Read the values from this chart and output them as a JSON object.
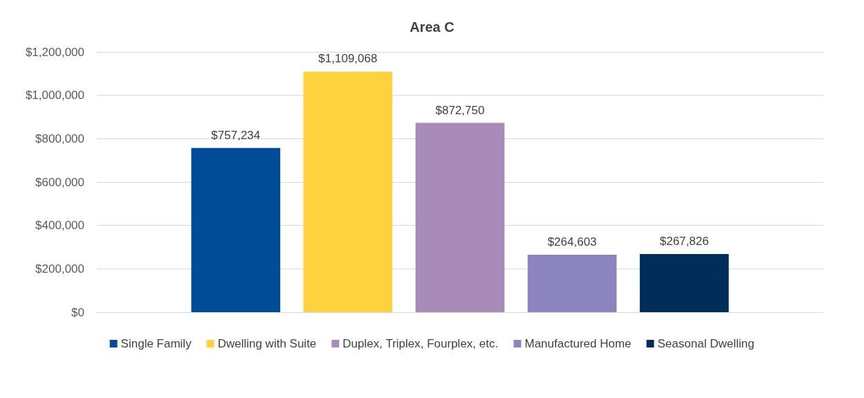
{
  "chart_data": {
    "type": "bar",
    "title": "Area C",
    "categories": [
      null
    ],
    "series": [
      {
        "name": "Single Family",
        "color": "#004c97",
        "values": [
          757234
        ],
        "value_labels": [
          "$757,234"
        ]
      },
      {
        "name": "Dwelling with Suite",
        "color": "#fdd23e",
        "values": [
          1109068
        ],
        "value_labels": [
          "$1,109,068"
        ]
      },
      {
        "name": "Duplex, Triplex, Fourplex, etc.",
        "color": "#a98bb8",
        "values": [
          872750
        ],
        "value_labels": [
          "$872,750"
        ]
      },
      {
        "name": "Manufactured Home",
        "color": "#8b84bf",
        "values": [
          264603
        ],
        "value_labels": [
          "$264,603"
        ]
      },
      {
        "name": "Seasonal Dwelling",
        "color": "#002d5a",
        "values": [
          267826
        ],
        "value_labels": [
          "$267,826"
        ]
      }
    ],
    "ylim": [
      0,
      1200000
    ],
    "yticks": [
      {
        "value": 0,
        "label": "$0"
      },
      {
        "value": 200000,
        "label": "$200,000"
      },
      {
        "value": 400000,
        "label": "$400,000"
      },
      {
        "value": 600000,
        "label": "$600,000"
      },
      {
        "value": 800000,
        "label": "$800,000"
      },
      {
        "value": 1000000,
        "label": "$1,000,000"
      },
      {
        "value": 1200000,
        "label": "$1,200,000"
      }
    ],
    "grid": "y",
    "legend": "bottom"
  }
}
